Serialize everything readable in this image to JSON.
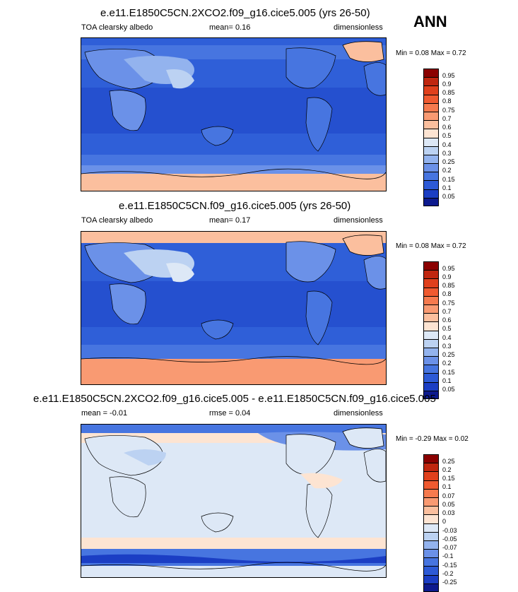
{
  "season": "ANN",
  "panels": [
    {
      "title": "e.e11.E1850C5CN.2XCO2.f09_g16.cice5.005 (yrs 26-50)",
      "left_label": "TOA clearsky albedo",
      "center_label": "mean=  0.16",
      "right_label": "dimensionless",
      "minmax": "Min =  0.08 Max =  0.72",
      "colorbar_labels": [
        "0.95",
        "0.9",
        "0.85",
        "0.8",
        "0.75",
        "0.7",
        "0.6",
        "0.5",
        "0.4",
        "0.3",
        "0.25",
        "0.2",
        "0.15",
        "0.1",
        "0.05"
      ],
      "colorbar_colors": [
        "#8b0000",
        "#c0260f",
        "#e0401c",
        "#f05a30",
        "#f67a4e",
        "#f99a72",
        "#fbbf9e",
        "#fde4d2",
        "#dde8f6",
        "#bcd2f2",
        "#93b3ee",
        "#6b91e8",
        "#4775e0",
        "#2d5ad6",
        "#1b3ec4",
        "#0d1a8e"
      ]
    },
    {
      "title": "e.e11.E1850C5CN.f09_g16.cice5.005 (yrs 26-50)",
      "left_label": "TOA clearsky albedo",
      "center_label": "mean=  0.17",
      "right_label": "dimensionless",
      "minmax": "Min =  0.08 Max =  0.72",
      "colorbar_labels": [
        "0.95",
        "0.9",
        "0.85",
        "0.8",
        "0.75",
        "0.7",
        "0.6",
        "0.5",
        "0.4",
        "0.3",
        "0.25",
        "0.2",
        "0.15",
        "0.1",
        "0.05"
      ],
      "colorbar_colors": [
        "#8b0000",
        "#c0260f",
        "#e0401c",
        "#f05a30",
        "#f67a4e",
        "#f99a72",
        "#fbbf9e",
        "#fde4d2",
        "#dde8f6",
        "#bcd2f2",
        "#93b3ee",
        "#6b91e8",
        "#4775e0",
        "#2d5ad6",
        "#1b3ec4",
        "#0d1a8e"
      ]
    },
    {
      "title": "e.e11.E1850C5CN.2XCO2.f09_g16.cice5.005 - e.e11.E1850C5CN.f09_g16.cice5.005",
      "left_label": "mean =  -0.01",
      "center_label": "rmse =  0.04",
      "right_label": "dimensionless",
      "minmax": "Min = -0.29 Max =  0.02",
      "colorbar_labels": [
        "0.25",
        "0.2",
        "0.15",
        "0.1",
        "0.07",
        "0.05",
        "0.03",
        "0",
        "-0.03",
        "-0.05",
        "-0.07",
        "-0.1",
        "-0.15",
        "-0.2",
        "-0.25"
      ],
      "colorbar_colors": [
        "#8b0000",
        "#c0260f",
        "#e0401c",
        "#f05a30",
        "#f67a4e",
        "#f99a72",
        "#fbbf9e",
        "#fde4d2",
        "#dde8f6",
        "#bcd2f2",
        "#93b3ee",
        "#6b91e8",
        "#4775e0",
        "#2d5ad6",
        "#1b3ec4",
        "#0d1a8e"
      ]
    }
  ]
}
